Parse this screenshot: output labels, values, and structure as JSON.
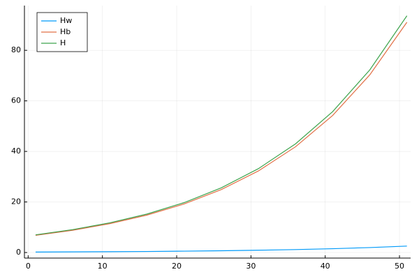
{
  "chart_data": {
    "type": "line",
    "x": [
      1,
      6,
      11,
      16,
      21,
      26,
      31,
      36,
      41,
      46,
      51
    ],
    "series": [
      {
        "name": "Hw",
        "color": "#009af9",
        "values": [
          0.19,
          0.25,
          0.32,
          0.41,
          0.54,
          0.7,
          0.9,
          1.17,
          1.51,
          1.96,
          2.55
        ]
      },
      {
        "name": "Hb",
        "color": "#e26f46",
        "values": [
          6.8,
          8.81,
          11.43,
          14.81,
          19.2,
          24.89,
          32.27,
          41.83,
          54.22,
          70.29,
          91.11
        ]
      },
      {
        "name": "H",
        "color": "#3da44d",
        "values": [
          6.99,
          9.06,
          11.75,
          15.22,
          19.74,
          25.59,
          33.17,
          43.0,
          55.73,
          72.25,
          93.66
        ]
      }
    ],
    "xlim": [
      -0.5,
      51.5
    ],
    "ylim": [
      -2.2,
      97.7
    ],
    "xticks": [
      0,
      10,
      20,
      30,
      40,
      50
    ],
    "yticks": [
      0,
      20,
      40,
      60,
      80
    ],
    "grid": true,
    "legend": "top-left"
  }
}
